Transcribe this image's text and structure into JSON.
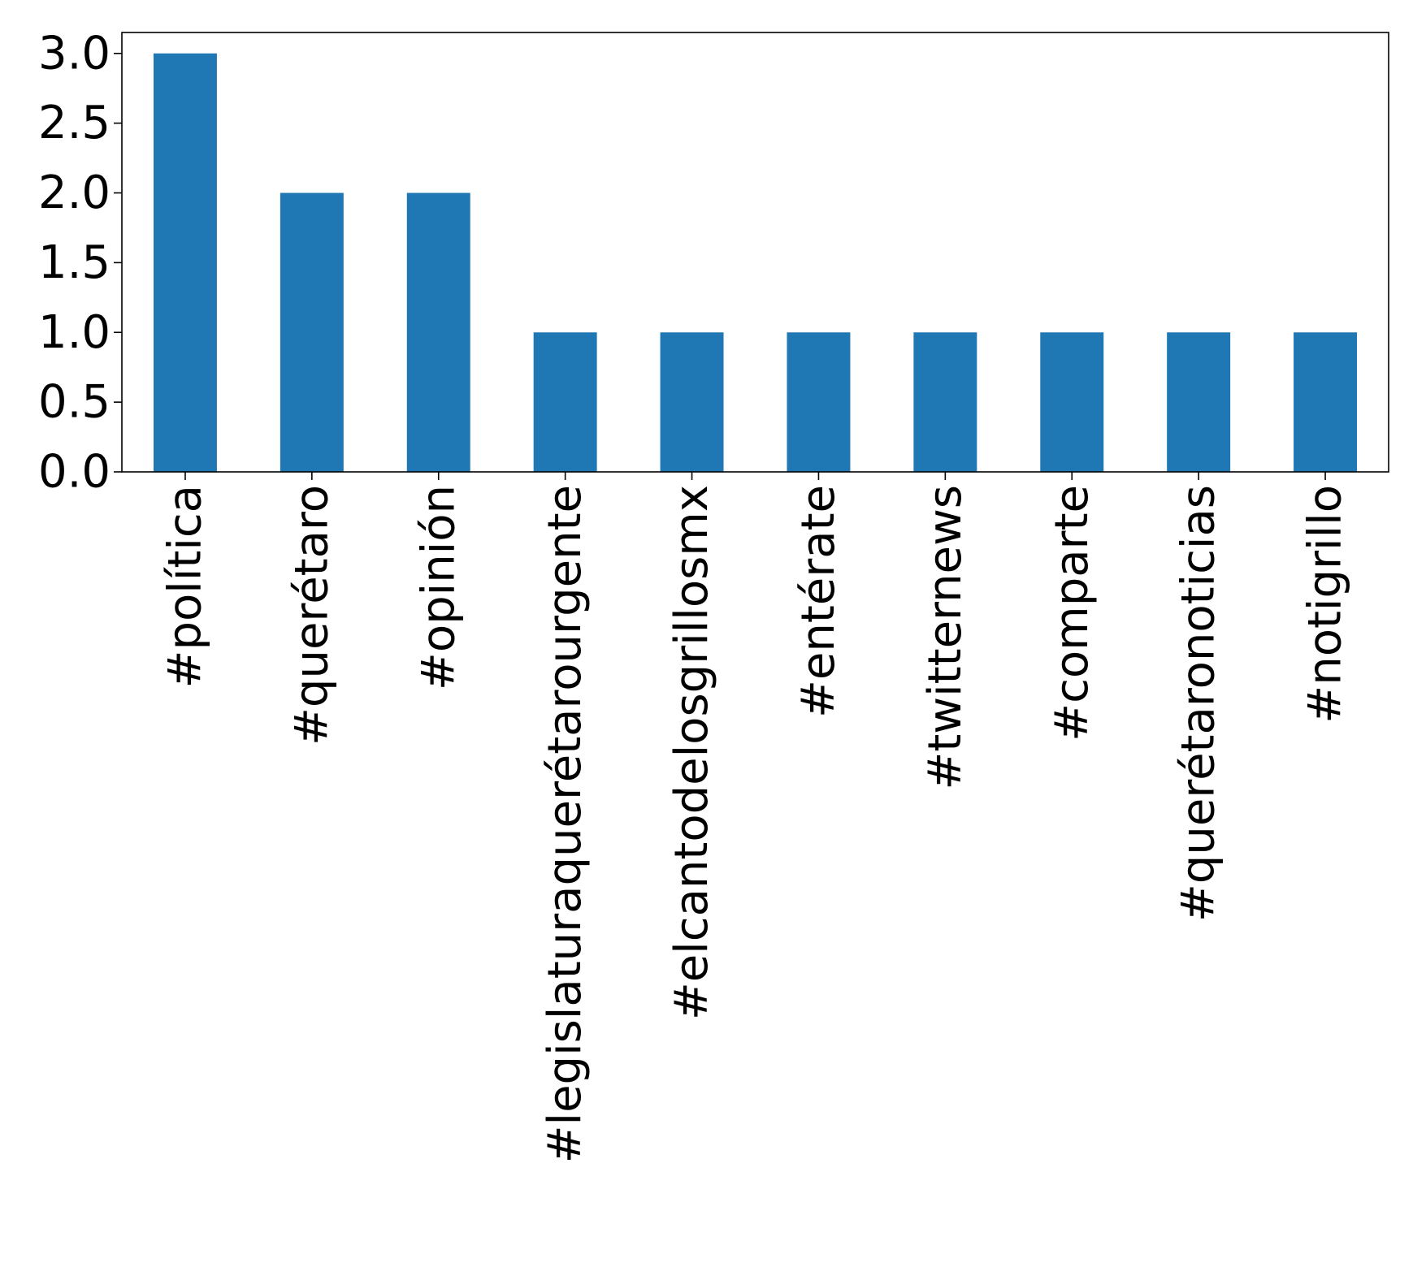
{
  "chart_data": {
    "type": "bar",
    "categories": [
      "#política",
      "#querétaro",
      "#opinión",
      "#legislaturaquerétarourgente",
      "#elcantodelosgrillosmx",
      "#entérate",
      "#twitternews",
      "#comparte",
      "#querétaronoticias",
      "#notigrillo"
    ],
    "values": [
      3,
      2,
      2,
      1,
      1,
      1,
      1,
      1,
      1,
      1
    ],
    "title": "",
    "xlabel": "",
    "ylabel": "",
    "ylim": [
      0,
      3.15
    ],
    "yticks": [
      0.0,
      0.5,
      1.0,
      1.5,
      2.0,
      2.5,
      3.0
    ],
    "ytick_labels": [
      "0.0",
      "0.5",
      "1.0",
      "1.5",
      "2.0",
      "2.5",
      "3.0"
    ],
    "bar_color": "#1f77b4",
    "grid": false,
    "legend": "none"
  }
}
